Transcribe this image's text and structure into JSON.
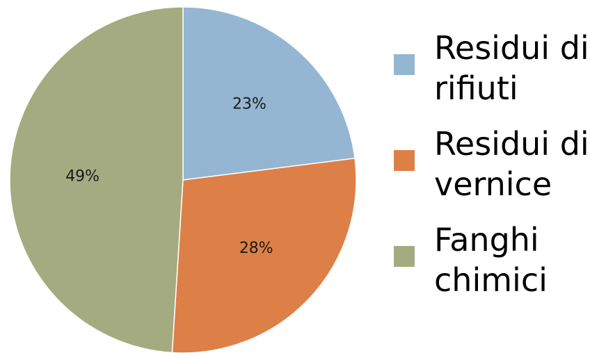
{
  "chart_data": {
    "type": "pie",
    "title": "",
    "slices": [
      {
        "label": "Residui di rifiuti",
        "value": 23,
        "display": "23%",
        "color": "#94b6d2"
      },
      {
        "label": "Residui di vernice",
        "value": 28,
        "display": "28%",
        "color": "#dd8047"
      },
      {
        "label": "Fanghi chimici",
        "value": 49,
        "display": "49%",
        "color": "#a5ab81"
      }
    ],
    "legend_position": "right"
  }
}
